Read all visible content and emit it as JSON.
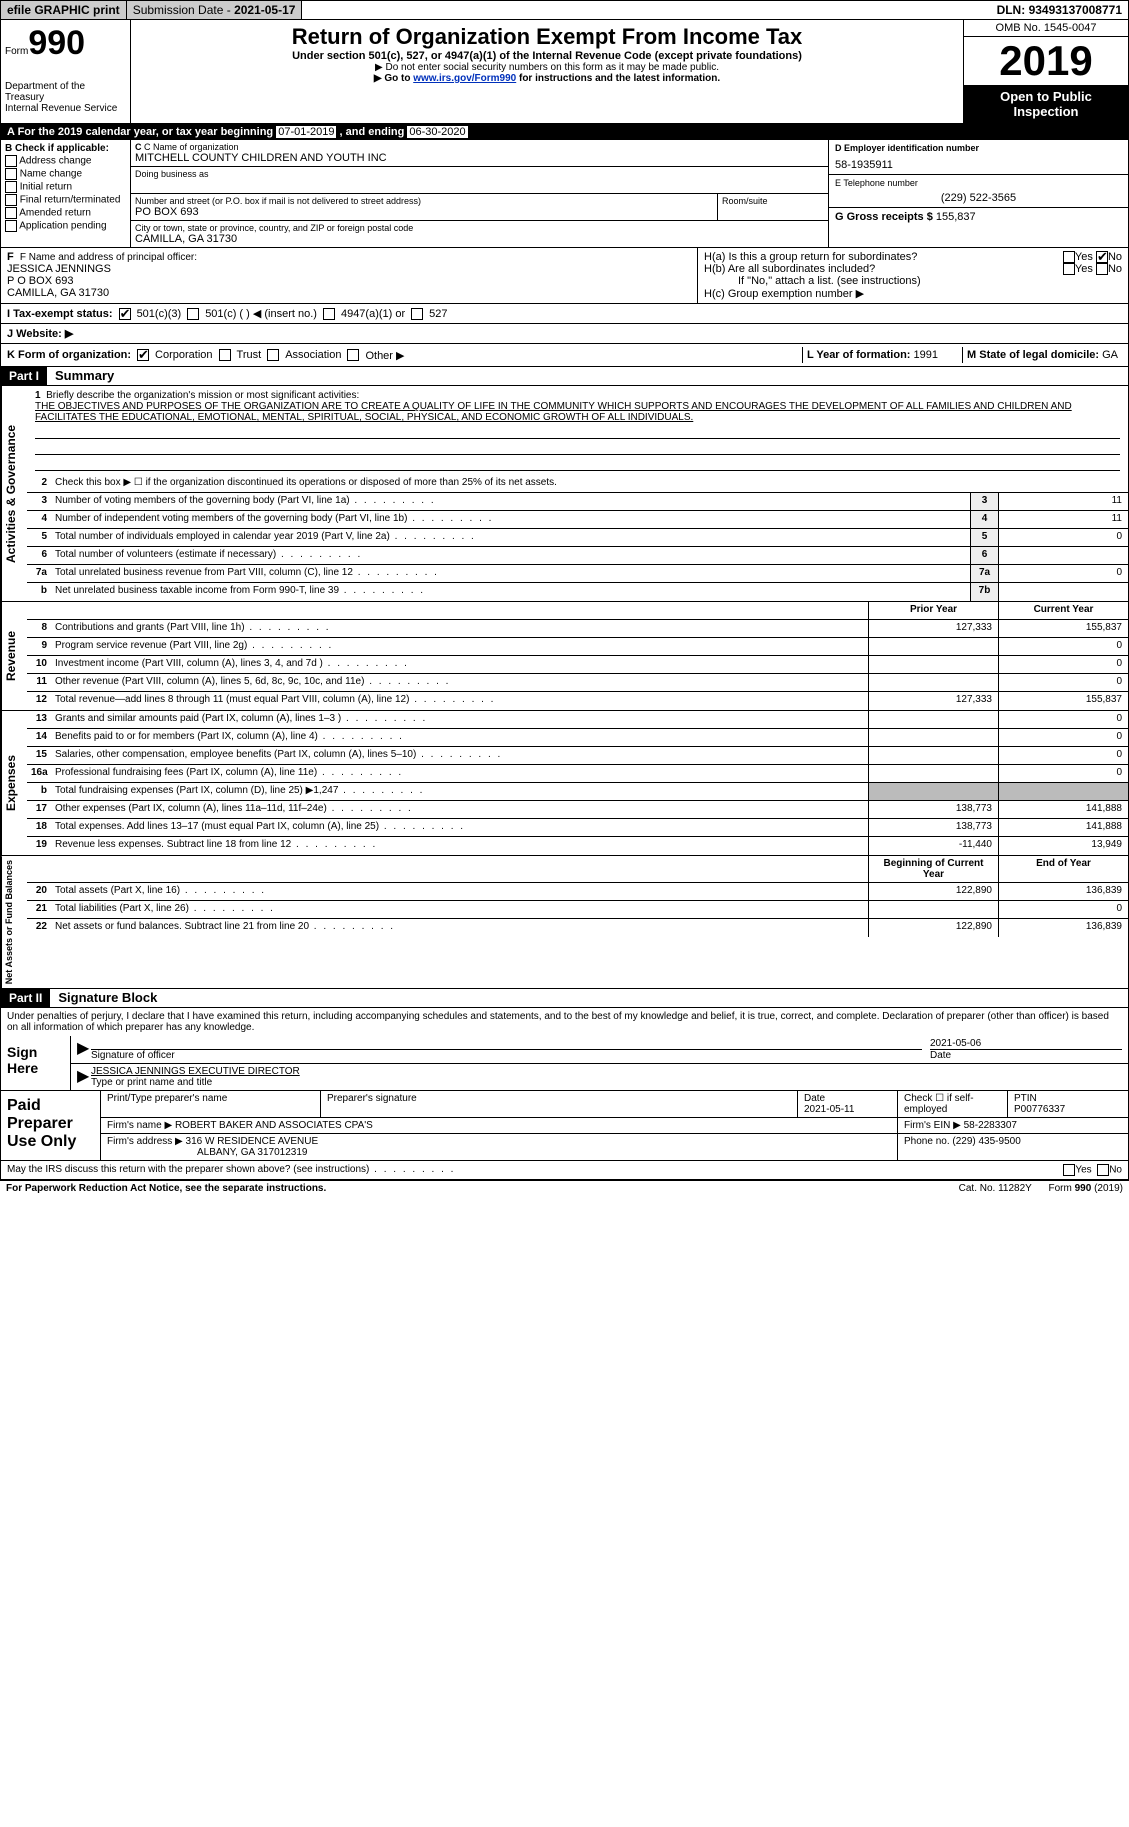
{
  "topbar": {
    "efile": "efile GRAPHIC print",
    "subdate_label": "Submission Date - ",
    "subdate": "2021-05-17",
    "dln_label": "DLN: ",
    "dln": "93493137008771"
  },
  "header": {
    "form_word": "Form",
    "form_num": "990",
    "dept": "Department of the Treasury\nInternal Revenue Service",
    "title": "Return of Organization Exempt From Income Tax",
    "subtitle": "Under section 501(c), 527, or 4947(a)(1) of the Internal Revenue Code (except private foundations)",
    "note1": "▶ Do not enter social security numbers on this form as it may be made public.",
    "note2_pre": "▶ Go to ",
    "note2_link": "www.irs.gov/Form990",
    "note2_post": " for instructions and the latest information.",
    "omb": "OMB No. 1545-0047",
    "year": "2019",
    "inspect": "Open to Public Inspection"
  },
  "period": {
    "text_pre": "A For the 2019 calendar year, or tax year beginning ",
    "begin": "07-01-2019",
    "mid": " , and ending ",
    "end": "06-30-2020"
  },
  "boxB": {
    "label": "B Check if applicable:",
    "items": [
      "Address change",
      "Name change",
      "Initial return",
      "Final return/terminated",
      "Amended return",
      "Application pending"
    ]
  },
  "boxC": {
    "name_label": "C Name of organization",
    "name": "MITCHELL COUNTY CHILDREN AND YOUTH INC",
    "dba_label": "Doing business as",
    "addr_label": "Number and street (or P.O. box if mail is not delivered to street address)",
    "room_label": "Room/suite",
    "addr": "PO BOX 693",
    "city_label": "City or town, state or province, country, and ZIP or foreign postal code",
    "city": "CAMILLA, GA  31730"
  },
  "boxD": {
    "label": "D Employer identification number",
    "val": "58-1935911"
  },
  "boxE": {
    "label": "E Telephone number",
    "val": "(229) 522-3565"
  },
  "boxG": {
    "label": "G Gross receipts $ ",
    "val": "155,837"
  },
  "boxF": {
    "label": "F  Name and address of principal officer:",
    "name": "JESSICA JENNINGS",
    "line1": "P O BOX 693",
    "line2": "CAMILLA, GA  31730"
  },
  "boxH": {
    "ha": "H(a)  Is this a group return for subordinates?",
    "hb": "H(b)  Are all subordinates included?",
    "hb_note": "If \"No,\" attach a list. (see instructions)",
    "hc": "H(c)  Group exemption number ▶",
    "yes": "Yes",
    "no": "No",
    "ha_checked_no": true
  },
  "taxexempt": {
    "label": "I   Tax-exempt status:",
    "opt1": "501(c)(3)",
    "opt2": "501(c) (  ) ◀ (insert no.)",
    "opt3": "4947(a)(1) or",
    "opt4": "527",
    "checked": 1
  },
  "website": {
    "label": "J   Website: ▶"
  },
  "korg": {
    "label": "K Form of organization:",
    "opts": [
      "Corporation",
      "Trust",
      "Association",
      "Other ▶"
    ],
    "checked": 0,
    "l_label": "L Year of formation: ",
    "l_val": "1991",
    "m_label": "M State of legal domicile: ",
    "m_val": "GA"
  },
  "parts": {
    "p1": "Part I",
    "p1_title": "Summary",
    "p2": "Part II",
    "p2_title": "Signature Block"
  },
  "summary": {
    "line1_label": "Briefly describe the organization's mission or most significant activities:",
    "mission": "THE OBJECTIVES AND PURPOSES OF THE ORGANIZATION ARE TO CREATE A QUALITY OF LIFE IN THE COMMUNITY WHICH SUPPORTS AND ENCOURAGES THE DEVELOPMENT OF ALL FAMILIES AND CHILDREN AND FACILITATES THE EDUCATIONAL, EMOTIONAL, MENTAL, SPIRITUAL, SOCIAL, PHYSICAL, AND ECONOMIC GROWTH OF ALL INDIVIDUALS.",
    "line2": "Check this box ▶ ☐  if the organization discontinued its operations or disposed of more than 25% of its net assets.",
    "vtab_gov": "Activities & Governance",
    "vtab_rev": "Revenue",
    "vtab_exp": "Expenses",
    "vtab_net": "Net Assets or Fund Balances",
    "col_prior": "Prior Year",
    "col_curr": "Current Year",
    "col_beg": "Beginning of Current Year",
    "col_end": "End of Year",
    "rows_gov": [
      {
        "n": "3",
        "t": "Number of voting members of the governing body (Part VI, line 1a)",
        "box": "3",
        "v": "11"
      },
      {
        "n": "4",
        "t": "Number of independent voting members of the governing body (Part VI, line 1b)",
        "box": "4",
        "v": "11"
      },
      {
        "n": "5",
        "t": "Total number of individuals employed in calendar year 2019 (Part V, line 2a)",
        "box": "5",
        "v": "0"
      },
      {
        "n": "6",
        "t": "Total number of volunteers (estimate if necessary)",
        "box": "6",
        "v": ""
      },
      {
        "n": "7a",
        "t": "Total unrelated business revenue from Part VIII, column (C), line 12",
        "box": "7a",
        "v": "0"
      },
      {
        "n": "b",
        "t": "Net unrelated business taxable income from Form 990-T, line 39",
        "box": "7b",
        "v": ""
      }
    ],
    "rows_rev": [
      {
        "n": "8",
        "t": "Contributions and grants (Part VIII, line 1h)",
        "p": "127,333",
        "c": "155,837"
      },
      {
        "n": "9",
        "t": "Program service revenue (Part VIII, line 2g)",
        "p": "",
        "c": "0"
      },
      {
        "n": "10",
        "t": "Investment income (Part VIII, column (A), lines 3, 4, and 7d )",
        "p": "",
        "c": "0"
      },
      {
        "n": "11",
        "t": "Other revenue (Part VIII, column (A), lines 5, 6d, 8c, 9c, 10c, and 11e)",
        "p": "",
        "c": "0"
      },
      {
        "n": "12",
        "t": "Total revenue—add lines 8 through 11 (must equal Part VIII, column (A), line 12)",
        "p": "127,333",
        "c": "155,837"
      }
    ],
    "rows_exp": [
      {
        "n": "13",
        "t": "Grants and similar amounts paid (Part IX, column (A), lines 1–3 )",
        "p": "",
        "c": "0"
      },
      {
        "n": "14",
        "t": "Benefits paid to or for members (Part IX, column (A), line 4)",
        "p": "",
        "c": "0"
      },
      {
        "n": "15",
        "t": "Salaries, other compensation, employee benefits (Part IX, column (A), lines 5–10)",
        "p": "",
        "c": "0"
      },
      {
        "n": "16a",
        "t": "Professional fundraising fees (Part IX, column (A), line 11e)",
        "p": "",
        "c": "0"
      },
      {
        "n": "b",
        "t": "Total fundraising expenses (Part IX, column (D), line 25) ▶1,247",
        "p": "shade",
        "c": "shade"
      },
      {
        "n": "17",
        "t": "Other expenses (Part IX, column (A), lines 11a–11d, 11f–24e)",
        "p": "138,773",
        "c": "141,888"
      },
      {
        "n": "18",
        "t": "Total expenses. Add lines 13–17 (must equal Part IX, column (A), line 25)",
        "p": "138,773",
        "c": "141,888"
      },
      {
        "n": "19",
        "t": "Revenue less expenses. Subtract line 18 from line 12",
        "p": "-11,440",
        "c": "13,949"
      }
    ],
    "rows_net": [
      {
        "n": "20",
        "t": "Total assets (Part X, line 16)",
        "p": "122,890",
        "c": "136,839"
      },
      {
        "n": "21",
        "t": "Total liabilities (Part X, line 26)",
        "p": "",
        "c": "0"
      },
      {
        "n": "22",
        "t": "Net assets or fund balances. Subtract line 21 from line 20",
        "p": "122,890",
        "c": "136,839"
      }
    ]
  },
  "sig": {
    "perjury": "Under penalties of perjury, I declare that I have examined this return, including accompanying schedules and statements, and to the best of my knowledge and belief, it is true, correct, and complete. Declaration of preparer (other than officer) is based on all information of which preparer has any knowledge.",
    "sign_here": "Sign Here",
    "sig_of_officer": "Signature of officer",
    "date": "2021-05-06",
    "date_label": "Date",
    "name_title": "JESSICA JENNINGS  EXECUTIVE DIRECTOR",
    "name_title_label": "Type or print name and title"
  },
  "paid": {
    "label": "Paid Preparer Use Only",
    "h1": "Print/Type preparer's name",
    "h2": "Preparer's signature",
    "h3": "Date",
    "h3v": "2021-05-11",
    "h4": "Check ☐ if self-employed",
    "h5": "PTIN",
    "h5v": "P00776337",
    "firm_label": "Firm's name    ▶ ",
    "firm": "ROBERT BAKER AND ASSOCIATES CPA'S",
    "ein_label": "Firm's EIN ▶ ",
    "ein": "58-2283307",
    "addr_label": "Firm's address ▶ ",
    "addr1": "316 W RESIDENCE AVENUE",
    "addr2": "ALBANY, GA  317012319",
    "phone_label": "Phone no. ",
    "phone": "(229) 435-9500"
  },
  "footer": {
    "discuss": "May the IRS discuss this return with the preparer shown above? (see instructions)",
    "yes": "Yes",
    "no": "No",
    "paperwork": "For Paperwork Reduction Act Notice, see the separate instructions.",
    "cat": "Cat. No. 11282Y",
    "formref": "Form 990 (2019)"
  },
  "colors": {
    "black": "#000000",
    "shade": "#bbbbbb",
    "link": "#0030bb"
  }
}
